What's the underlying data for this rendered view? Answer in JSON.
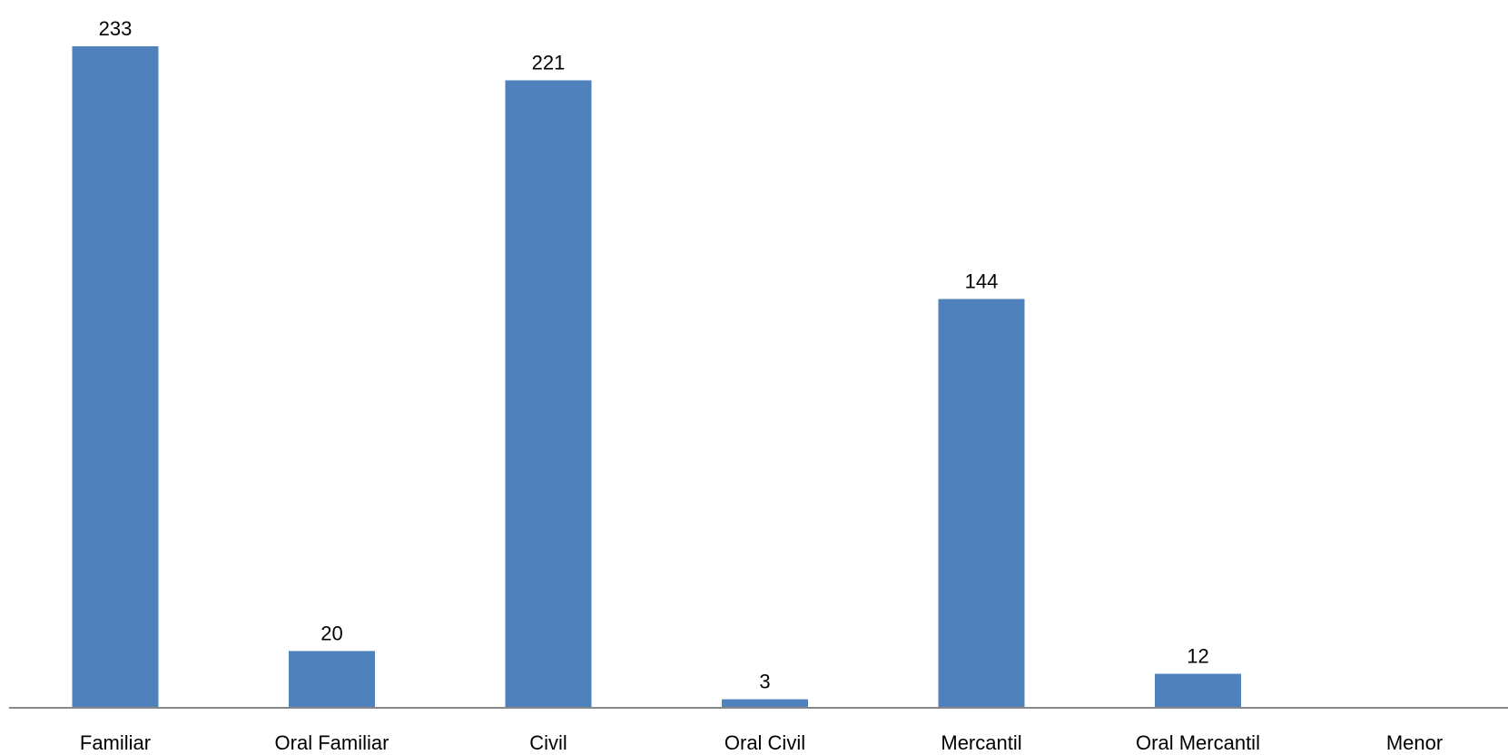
{
  "chart_data": {
    "type": "bar",
    "title": "",
    "xlabel": "",
    "ylabel": "",
    "categories": [
      "Familiar",
      "Oral Familiar",
      "Civil",
      "Oral Civil",
      "Mercantil",
      "Oral Mercantil",
      "Menor"
    ],
    "values": [
      233,
      20,
      221,
      3,
      144,
      12,
      null
    ],
    "data_labels": [
      "233",
      "20",
      "221",
      "3",
      "144",
      "12",
      ""
    ],
    "ylim": [
      0,
      233
    ],
    "grid": false,
    "legend": "none",
    "y_axis_visible": false,
    "bar_color": "#4f81bd",
    "axis_color": "#888888"
  }
}
